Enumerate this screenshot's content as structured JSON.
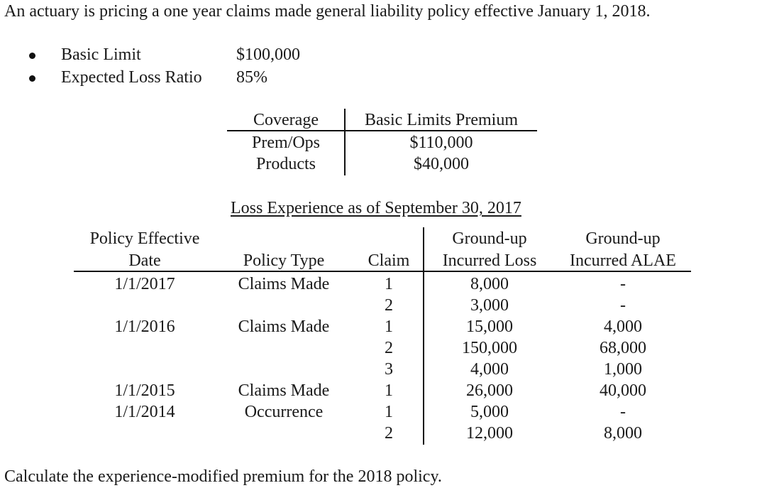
{
  "intro": "An actuary is pricing a one year claims made general liability policy effective January 1, 2018.",
  "bullets": [
    {
      "label": "Basic Limit",
      "value": "$100,000"
    },
    {
      "label": "Expected Loss Ratio",
      "value": "85%"
    }
  ],
  "premium_table": {
    "headers": [
      "Coverage",
      "Basic Limits Premium"
    ],
    "rows": [
      [
        "Prem/Ops",
        "$110,000"
      ],
      [
        "Products",
        "$40,000"
      ]
    ]
  },
  "loss_title": "Loss Experience as of September 30, 2017",
  "loss_table": {
    "headers": {
      "date_line1": "Policy Effective",
      "date_line2": "Date",
      "type": "Policy Type",
      "claim": "Claim",
      "loss_line1": "Ground-up",
      "loss_line2": "Incurred Loss",
      "alae_line1": "Ground-up",
      "alae_line2": "Incurred ALAE"
    },
    "rows": [
      {
        "date": "1/1/2017",
        "type": "Claims Made",
        "claim": "1",
        "loss": "8,000",
        "alae": "-"
      },
      {
        "date": "",
        "type": "",
        "claim": "2",
        "loss": "3,000",
        "alae": "-"
      },
      {
        "date": "1/1/2016",
        "type": "Claims Made",
        "claim": "1",
        "loss": "15,000",
        "alae": "4,000"
      },
      {
        "date": "",
        "type": "",
        "claim": "2",
        "loss": "150,000",
        "alae": "68,000"
      },
      {
        "date": "",
        "type": "",
        "claim": "3",
        "loss": "4,000",
        "alae": "1,000"
      },
      {
        "date": "1/1/2015",
        "type": "Claims Made",
        "claim": "1",
        "loss": "26,000",
        "alae": "40,000"
      },
      {
        "date": "1/1/2014",
        "type": "Occurrence",
        "claim": "1",
        "loss": "5,000",
        "alae": "-"
      },
      {
        "date": "",
        "type": "",
        "claim": "2",
        "loss": "12,000",
        "alae": "8,000"
      }
    ]
  },
  "question": "Calculate the experience-modified premium for the 2018 policy."
}
